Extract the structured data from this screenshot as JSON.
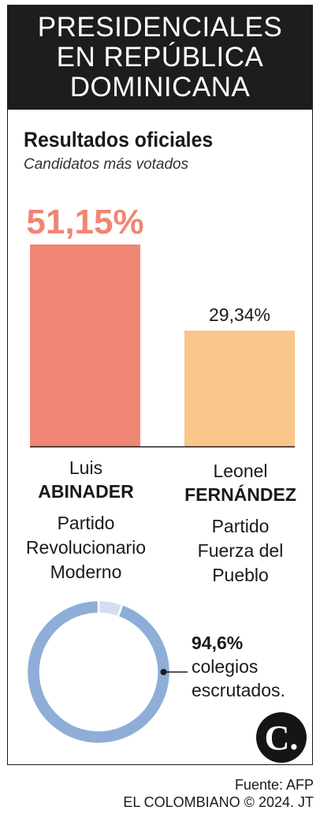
{
  "header": {
    "lines": [
      "PRESIDENCIALES",
      "EN REPÚBLICA",
      "DOMINICANA"
    ]
  },
  "subtitle": "Resultados oficiales",
  "subtitle2": "Candidatos más votados",
  "chart_data": {
    "type": "bar",
    "categories": [
      "Luis ABINADER",
      "Leonel FERNÁNDEZ"
    ],
    "values": [
      51.15,
      29.34
    ],
    "value_labels": [
      "51,15%",
      "29,34%"
    ],
    "colors": [
      "#f08674",
      "#f9c68c"
    ],
    "ylim": [
      0,
      51.15
    ]
  },
  "candidates": [
    {
      "first": "Luis",
      "last": "ABINADER",
      "party": [
        "Partido",
        "Revolucionario",
        "Moderno"
      ]
    },
    {
      "first": "Leonel",
      "last": "FERNÁNDEZ",
      "party": [
        "Partido",
        "Fuerza del",
        "Pueblo"
      ]
    }
  ],
  "donut": {
    "value": 94.6,
    "label": "94,6%",
    "text": [
      "colegios",
      "escrutados."
    ],
    "colors": {
      "filled": "#8eaed7",
      "remaining": "#d3dff0"
    }
  },
  "logo": "C.",
  "source": {
    "line1": "Fuente: AFP",
    "line2": "EL COLOMBIANO © 2024. JT"
  }
}
